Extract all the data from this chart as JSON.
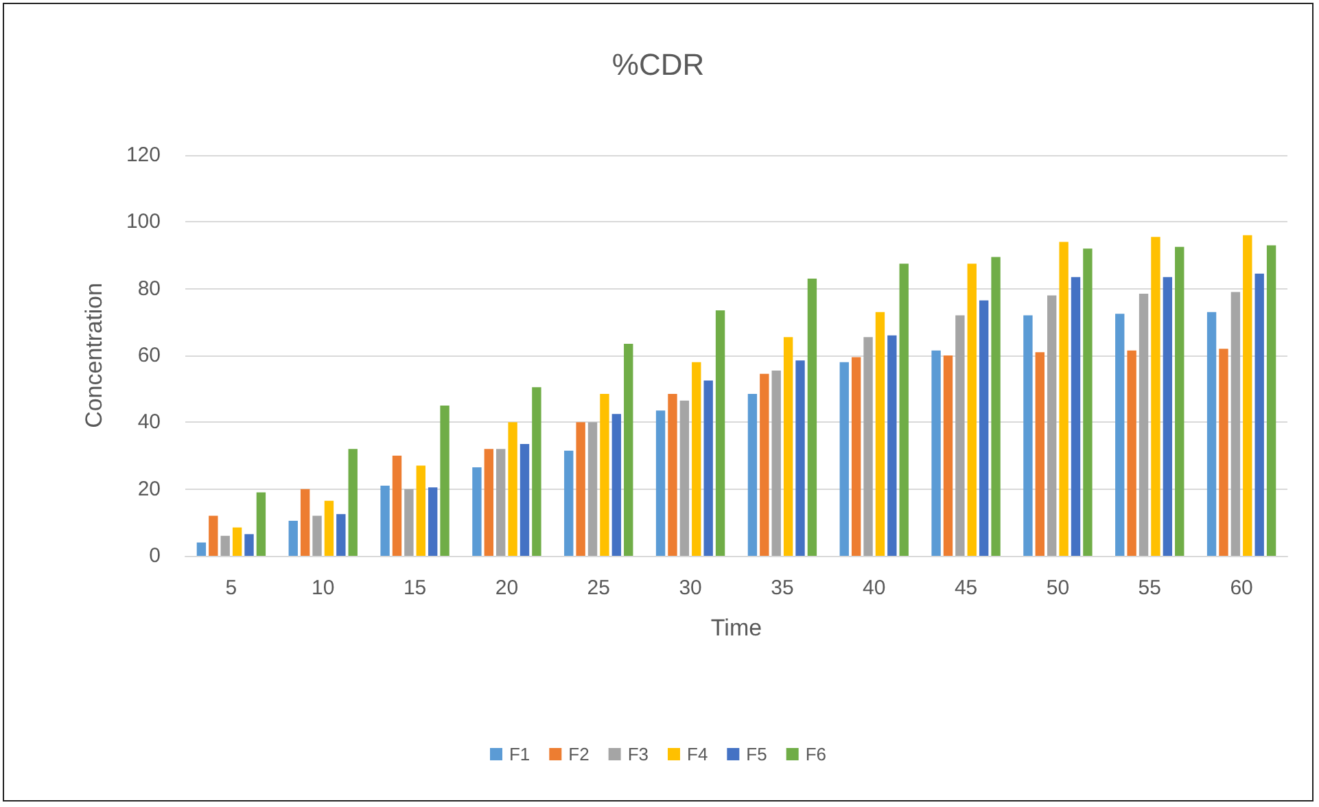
{
  "chart_data": {
    "type": "bar",
    "title": "%CDR",
    "xlabel": "Time",
    "ylabel": "Concentration",
    "categories": [
      "5",
      "10",
      "15",
      "20",
      "25",
      "30",
      "35",
      "40",
      "45",
      "50",
      "55",
      "60"
    ],
    "series": [
      {
        "name": "F1",
        "color": "#5b9bd5",
        "values": [
          4,
          10.5,
          21,
          26.5,
          31.5,
          43.5,
          48.5,
          58,
          61.5,
          72,
          72.5,
          73
        ]
      },
      {
        "name": "F2",
        "color": "#ed7d31",
        "values": [
          12,
          20,
          30,
          32,
          40,
          48.5,
          54.5,
          59.5,
          60,
          61,
          61.5,
          62
        ]
      },
      {
        "name": "F3",
        "color": "#a5a5a5",
        "values": [
          6,
          12,
          20,
          32,
          40,
          46.5,
          55.5,
          65.5,
          72,
          78,
          78.5,
          79
        ]
      },
      {
        "name": "F4",
        "color": "#ffc000",
        "values": [
          8.5,
          16.5,
          27,
          40,
          48.5,
          58,
          65.5,
          73,
          87.5,
          94,
          95.5,
          96
        ]
      },
      {
        "name": "F5",
        "color": "#4472c4",
        "values": [
          6.5,
          12.5,
          20.5,
          33.5,
          42.5,
          52.5,
          58.5,
          66,
          76.5,
          83.5,
          83.5,
          84.5
        ]
      },
      {
        "name": "F6",
        "color": "#70ad47",
        "values": [
          19,
          32,
          45,
          50.5,
          63.5,
          73.5,
          83,
          87.5,
          89.5,
          92,
          92.5,
          93
        ]
      }
    ],
    "ylim": [
      0,
      120
    ],
    "yticks": [
      0,
      20,
      40,
      60,
      80,
      100,
      120
    ],
    "grid": "y",
    "legend": "bottom"
  }
}
